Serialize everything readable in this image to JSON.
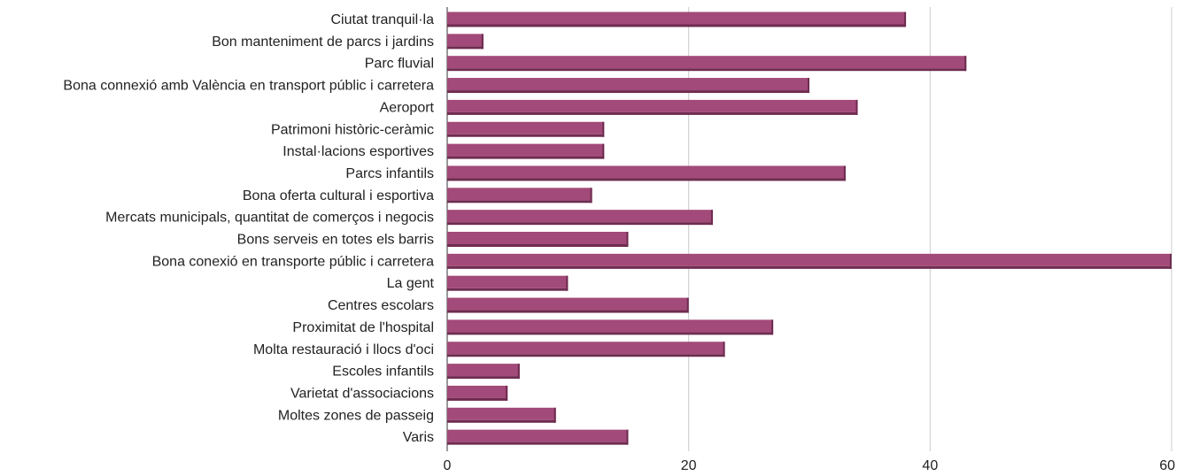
{
  "chart_data": {
    "type": "bar",
    "orientation": "horizontal",
    "categories": [
      "Ciutat tranquil·la",
      "Bon manteniment de parcs i jardins",
      "Parc fluvial",
      "Bona connexió amb València en transport públic i carretera",
      "Aeroport",
      "Patrimoni històric-ceràmic",
      "Instal·lacions esportives",
      "Parcs infantils",
      "Bona oferta cultural i esportiva",
      "Mercats municipals, quantitat de comerços i negocis",
      "Bons serveis en totes els barris",
      "Bona conexió en transporte públic i carretera",
      "La gent",
      "Centres escolars",
      "Proximitat de l'hospital",
      "Molta restauració i llocs d'oci",
      "Escoles infantils",
      "Varietat d'associacions",
      "Moltes zones de passeig",
      "Varis"
    ],
    "values": [
      38,
      3,
      43,
      30,
      34,
      13,
      13,
      33,
      12,
      22,
      15,
      60,
      10,
      20,
      27,
      23,
      6,
      5,
      9,
      15
    ],
    "xlim": [
      0,
      60
    ],
    "xticks": [
      0,
      20,
      40,
      60
    ],
    "grid": true,
    "colors": {
      "bar": "#a24a79",
      "bar_shadow": "#6e2c50",
      "grid": "#cccccc",
      "axis": "#333333"
    }
  }
}
